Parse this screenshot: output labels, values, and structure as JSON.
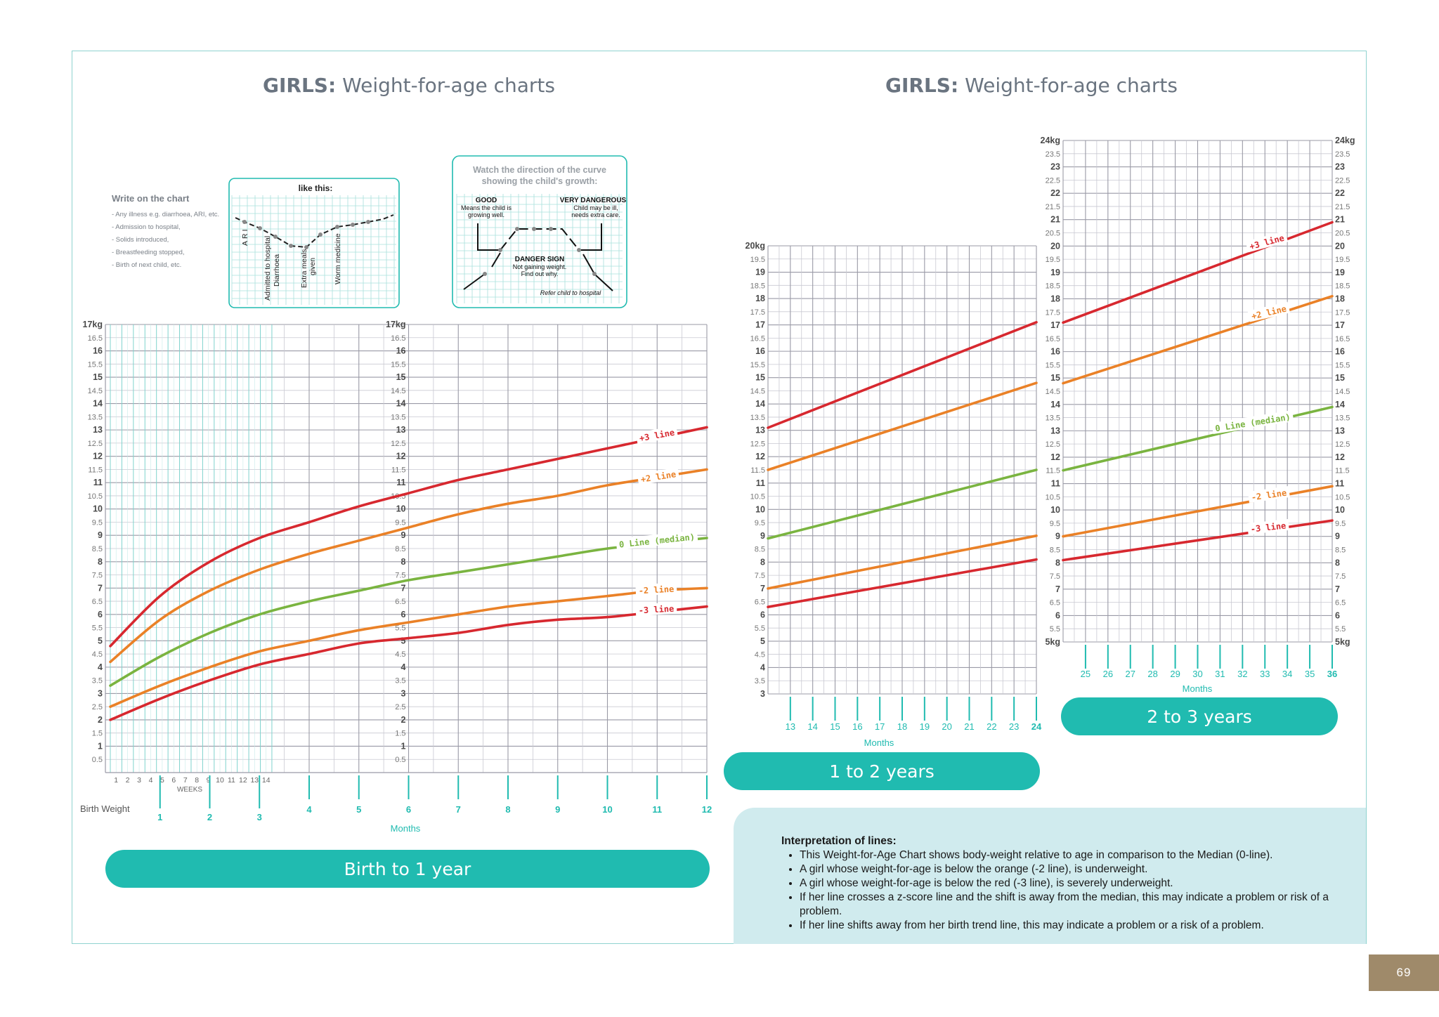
{
  "page": {
    "left_title_bold": "GIRLS:",
    "left_title_rest": " Weight-for-age charts",
    "right_title_bold": "GIRLS:",
    "right_title_rest": " Weight-for-age charts",
    "page_number": "69"
  },
  "instructions": {
    "write_heading": "Write on the chart",
    "write_items": [
      "- Any illness e.g. diarrhoea, ARI, etc.",
      "- Admission to hospital,",
      "- Solids introduced,",
      "- Breastfeeding stopped,",
      "- Birth of next child, etc."
    ],
    "example_title": "like this:",
    "example_notes": [
      "ARI",
      "Admitted to hospital",
      "Diarrhoea",
      "Extra meals",
      "given",
      "Worm medicine"
    ],
    "direction_title_1": "Watch the direction of the curve",
    "direction_title_2": "showing the child's growth:",
    "good_title": "GOOD",
    "good_text_1": "Means the child is",
    "good_text_2": "growing well.",
    "very_dangerous_title": "VERY DANGEROUS",
    "very_dangerous_text_1": "Child may be ill,",
    "very_dangerous_text_2": "needs extra care.",
    "danger_title": "DANGER SIGN",
    "danger_text_1": "Not gaining weight.",
    "danger_text_2": "Find out why.",
    "refer_text": "Refer child to hospital"
  },
  "colors": {
    "plus3": "#d7282f",
    "plus2": "#ea8127",
    "median": "#7ab440",
    "minus2": "#ea8127",
    "minus3": "#d7282f",
    "accent": "#20bbb0",
    "tick_text": "#555555"
  },
  "line_labels": {
    "plus3": "+3 line",
    "plus2": "+2 line",
    "median": "0 Line (median)",
    "minus2": "-2 line",
    "minus3": "-3 line"
  },
  "chart_data": [
    {
      "type": "line",
      "title": "Birth to 1 year",
      "xlabel": "Months",
      "x_sub_label": "WEEKS",
      "x_start_label": "Birth Weight",
      "ylabel_top": "17kg",
      "ylim": [
        0,
        17
      ],
      "xlim": [
        0,
        12
      ],
      "week_ticks": [
        "1",
        "2",
        "3",
        "4",
        "5",
        "6",
        "7",
        "8",
        "9",
        "10",
        "11",
        "12",
        "13",
        "14"
      ],
      "month_ticks": [
        "1",
        "2",
        "3",
        "4",
        "5",
        "6",
        "7",
        "8",
        "9",
        "10",
        "11",
        "12"
      ],
      "series": [
        {
          "key": "plus3",
          "name": "+3 line",
          "x": [
            0,
            1,
            2,
            3,
            4,
            5,
            6,
            7,
            8,
            9,
            10,
            11,
            12
          ],
          "y": [
            4.8,
            6.7,
            8.0,
            8.9,
            9.5,
            10.1,
            10.6,
            11.1,
            11.5,
            11.9,
            12.3,
            12.7,
            13.1
          ]
        },
        {
          "key": "plus2",
          "name": "+2 line",
          "x": [
            0,
            1,
            2,
            3,
            4,
            5,
            6,
            7,
            8,
            9,
            10,
            11,
            12
          ],
          "y": [
            4.2,
            5.8,
            6.9,
            7.7,
            8.3,
            8.8,
            9.3,
            9.8,
            10.2,
            10.5,
            10.9,
            11.2,
            11.5
          ]
        },
        {
          "key": "median",
          "name": "0 Line (median)",
          "x": [
            0,
            1,
            2,
            3,
            4,
            5,
            6,
            7,
            8,
            9,
            10,
            11,
            12
          ],
          "y": [
            3.3,
            4.4,
            5.3,
            6.0,
            6.5,
            6.9,
            7.3,
            7.6,
            7.9,
            8.2,
            8.5,
            8.7,
            8.9
          ]
        },
        {
          "key": "minus2",
          "name": "-2 line",
          "x": [
            0,
            1,
            2,
            3,
            4,
            5,
            6,
            7,
            8,
            9,
            10,
            11,
            12
          ],
          "y": [
            2.5,
            3.3,
            4.0,
            4.6,
            5.0,
            5.4,
            5.7,
            6.0,
            6.3,
            6.5,
            6.7,
            6.9,
            7.0
          ]
        },
        {
          "key": "minus3",
          "name": "-3 line",
          "x": [
            0,
            1,
            2,
            3,
            4,
            5,
            6,
            7,
            8,
            9,
            10,
            11,
            12
          ],
          "y": [
            2.0,
            2.8,
            3.5,
            4.1,
            4.5,
            4.9,
            5.1,
            5.3,
            5.6,
            5.8,
            5.9,
            6.1,
            6.3
          ]
        }
      ]
    },
    {
      "type": "line",
      "title": "1 to 2 years",
      "xlabel": "Months",
      "ylabel_top": "20kg",
      "ylim": [
        3,
        20
      ],
      "xlim": [
        12,
        24
      ],
      "month_ticks": [
        "13",
        "14",
        "15",
        "16",
        "17",
        "18",
        "19",
        "20",
        "21",
        "22",
        "23",
        "24"
      ],
      "series": [
        {
          "key": "plus3",
          "name": "+3 line",
          "x": [
            12,
            24
          ],
          "y": [
            13.1,
            17.1
          ]
        },
        {
          "key": "plus2",
          "name": "+2 line",
          "x": [
            12,
            24
          ],
          "y": [
            11.5,
            14.8
          ]
        },
        {
          "key": "median",
          "name": "0 Line (median)",
          "x": [
            12,
            24
          ],
          "y": [
            8.9,
            11.5
          ]
        },
        {
          "key": "minus2",
          "name": "-2 line",
          "x": [
            12,
            24
          ],
          "y": [
            7.0,
            9.0
          ]
        },
        {
          "key": "minus3",
          "name": "-3 line",
          "x": [
            12,
            24
          ],
          "y": [
            6.3,
            8.1
          ]
        }
      ]
    },
    {
      "type": "line",
      "title": "2 to 3 years",
      "xlabel": "Months",
      "ylabel_top": "24kg",
      "ylabel_bottom": "5kg",
      "ylim": [
        5,
        24
      ],
      "xlim": [
        24,
        36
      ],
      "month_ticks": [
        "25",
        "26",
        "27",
        "28",
        "29",
        "30",
        "31",
        "32",
        "33",
        "34",
        "35",
        "36"
      ],
      "series": [
        {
          "key": "plus3",
          "name": "+3 line",
          "x": [
            24,
            36
          ],
          "y": [
            17.1,
            20.9
          ]
        },
        {
          "key": "plus2",
          "name": "+2 line",
          "x": [
            24,
            36
          ],
          "y": [
            14.8,
            18.1
          ]
        },
        {
          "key": "median",
          "name": "0 Line (median)",
          "x": [
            24,
            36
          ],
          "y": [
            11.5,
            13.9
          ]
        },
        {
          "key": "minus2",
          "name": "-2 line",
          "x": [
            24,
            36
          ],
          "y": [
            9.0,
            10.9
          ]
        },
        {
          "key": "minus3",
          "name": "-3 line",
          "x": [
            24,
            36
          ],
          "y": [
            8.1,
            9.6
          ]
        }
      ]
    }
  ],
  "interpretation": {
    "title": "Interpretation of lines:",
    "items": [
      "This Weight-for-Age Chart shows body-weight relative to age in comparison to the Median (0-line).",
      "A girl whose weight-for-age is below the orange (-2 line), is underweight.",
      "A girl whose weight-for-age is below the red (-3 line), is severely underweight.",
      "If her line crosses a z-score line and the shift is away from the median, this may indicate a problem or risk of a problem.",
      "If her line shifts away from her birth trend line, this may indicate a problem or a risk of a problem."
    ]
  }
}
